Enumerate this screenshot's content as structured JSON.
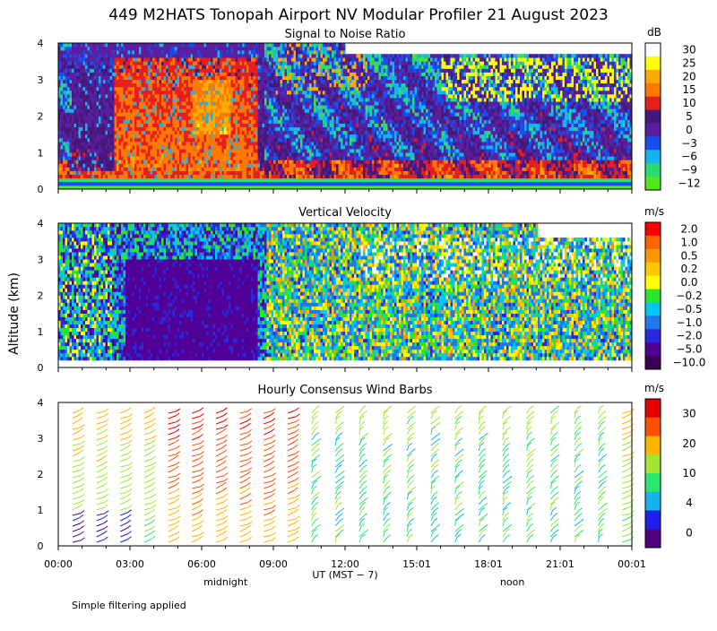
{
  "title": "449 M2HATS Tonopah Airport NV Modular Profiler 21 August 2023",
  "y_axis_label": "Altitude (km)",
  "footer_note": "Simple filtering applied",
  "colors": {
    "snr": [
      "#50e61e",
      "#2adc6e",
      "#14b4f0",
      "#1450f0",
      "#5a1ea0",
      "#46187a",
      "#e61e1e",
      "#ff7800",
      "#ffaa00",
      "#ffff00",
      "#ffffff"
    ],
    "vv": [
      "#3c0050",
      "#500096",
      "#2828dc",
      "#1e78f0",
      "#00c8f0",
      "#28e628",
      "#ffff00",
      "#ffc800",
      "#ff9600",
      "#ff6400",
      "#ff0000"
    ],
    "wind": [
      "#500080",
      "#1e1ef0",
      "#14b4f0",
      "#28e66e",
      "#a0e632",
      "#ffb400",
      "#ff5000",
      "#e60000"
    ]
  },
  "chart_data": [
    {
      "type": "heatmap",
      "title": "Signal to Noise Ratio",
      "units": "dB",
      "ylim": [
        0,
        4
      ],
      "y_ticks": [
        "0",
        "1",
        "2",
        "3",
        "4"
      ],
      "colorbar_labels": [
        "30",
        "25",
        "20",
        "15",
        "10",
        "5",
        "0",
        "−3",
        "−6",
        "−9",
        "−12"
      ]
    },
    {
      "type": "heatmap",
      "title": "Vertical Velocity",
      "units": "m/s",
      "ylim": [
        0,
        4
      ],
      "y_ticks": [
        "0",
        "1",
        "2",
        "3",
        "4"
      ],
      "colorbar_labels": [
        "2.0",
        "1.0",
        "0.5",
        "0.2",
        "0.0",
        "−0.2",
        "−0.5",
        "−1.0",
        "−2.0",
        "−5.0",
        "−10.0"
      ]
    },
    {
      "type": "scatter",
      "title": "Hourly Consensus Wind Barbs",
      "units": "m/s",
      "ylim": [
        0,
        4
      ],
      "y_ticks": [
        "0",
        "1",
        "2",
        "3",
        "4"
      ],
      "colorbar_labels": [
        "30",
        "20",
        "10",
        "4",
        "0"
      ],
      "xlabel": "UT  (MST − 7)",
      "x_ticks": [
        "00:00",
        "03:00",
        "06:00",
        "09:00",
        "12:00",
        "15:01",
        "18:01",
        "21:01",
        "00:01"
      ],
      "x_tick_hours": [
        0,
        3,
        6,
        9,
        12,
        15,
        18,
        21,
        24
      ],
      "time_markers": [
        "midnight",
        "noon"
      ],
      "time_marker_hours": [
        7,
        19
      ],
      "xlim": [
        0,
        24
      ]
    }
  ]
}
